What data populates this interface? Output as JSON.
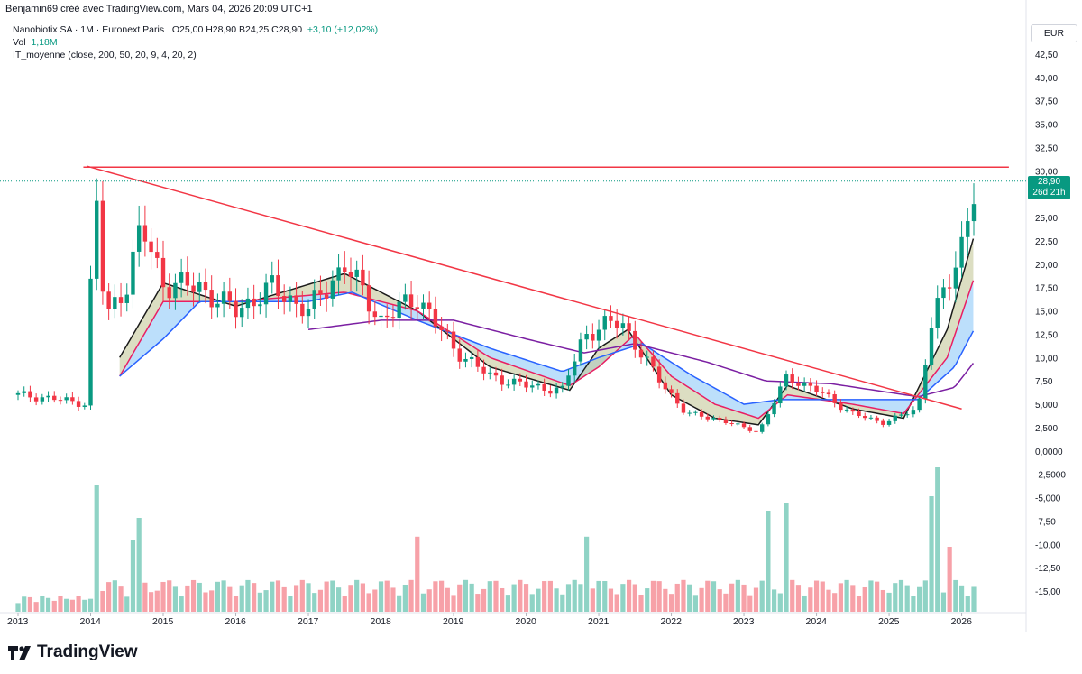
{
  "header": {
    "author_line": "Benjamin69 créé avec TradingView.com, Mars 04, 2026 20:09 UTC+1",
    "symbol_line": "Nanobiotix SA · 1M · Euronext Paris",
    "ohlc": "O25,00  H28,90  B24,25  C28,90",
    "change": "+3,10 (+12,02%)",
    "vol_label": "Vol",
    "vol_value": "1,18M",
    "indicator": "IT_moyenne (close, 200, 50, 20, 9, 4, 20, 2)"
  },
  "currency": "EUR",
  "price_tag": {
    "price": "28,90",
    "countdown": "26d 21h"
  },
  "brand": "TradingView",
  "colors": {
    "up": "#089981",
    "down": "#f23645",
    "trendline": "#f23645",
    "ma_fast": "#1b1b1b",
    "ma_pink": "#e91e63",
    "ma_blue": "#2962ff",
    "ma_purple": "#7b1fa2",
    "fill_blue": "#90caf9",
    "fill_olive": "#c5c89a",
    "vol_up": "#8fd3c5",
    "vol_down": "#f7a1a8"
  },
  "chart_data": {
    "type": "candlestick",
    "title": "Nanobiotix SA · 1M · Euronext Paris",
    "y_axis_labels": [
      "42,50",
      "40,00",
      "37,50",
      "35,00",
      "32,50",
      "30,00",
      "25,00",
      "22,50",
      "20,00",
      "17,50",
      "15,00",
      "12,50",
      "10,00",
      "7,50",
      "5,000",
      "2,500",
      "0,0000",
      "-2,5000",
      "-5,000",
      "-7,50",
      "-10,00",
      "-12,50",
      "-15,00"
    ],
    "y_axis_values": [
      42.5,
      40,
      37.5,
      35,
      32.5,
      30,
      25,
      22.5,
      20,
      17.5,
      15,
      12.5,
      10,
      7.5,
      5,
      2.5,
      0,
      -2.5,
      -5,
      -7.5,
      -10,
      -12.5,
      -15
    ],
    "ylim": [
      -17,
      43
    ],
    "x_axis_labels": [
      "2013",
      "2014",
      "2015",
      "2016",
      "2017",
      "2018",
      "2019",
      "2020",
      "2021",
      "2022",
      "2023",
      "2024",
      "2025",
      "2026"
    ],
    "x_axis_years": [
      2013,
      2014,
      2015,
      2016,
      2017,
      2018,
      2019,
      2020,
      2021,
      2022,
      2023,
      2024,
      2025,
      2026
    ],
    "xlim": [
      2013.0,
      2026.85
    ],
    "last_close": 28.9,
    "key_closes": [
      {
        "t": 2013.0,
        "v": 6.0
      },
      {
        "t": 2013.5,
        "v": 5.6
      },
      {
        "t": 2013.95,
        "v": 5.0
      },
      {
        "t": 2014.05,
        "v": 30.0
      },
      {
        "t": 2014.2,
        "v": 14.0
      },
      {
        "t": 2014.5,
        "v": 18.0
      },
      {
        "t": 2014.7,
        "v": 24.0
      },
      {
        "t": 2015.0,
        "v": 18.0
      },
      {
        "t": 2015.5,
        "v": 17.5
      },
      {
        "t": 2016.0,
        "v": 15.0
      },
      {
        "t": 2016.5,
        "v": 17.5
      },
      {
        "t": 2017.0,
        "v": 15.0
      },
      {
        "t": 2017.5,
        "v": 20.0
      },
      {
        "t": 2018.0,
        "v": 14.0
      },
      {
        "t": 2018.5,
        "v": 16.5
      },
      {
        "t": 2019.0,
        "v": 11.0
      },
      {
        "t": 2019.5,
        "v": 8.0
      },
      {
        "t": 2020.0,
        "v": 7.0
      },
      {
        "t": 2020.5,
        "v": 6.5
      },
      {
        "t": 2020.8,
        "v": 12.5
      },
      {
        "t": 2021.3,
        "v": 14.0
      },
      {
        "t": 2021.7,
        "v": 9.0
      },
      {
        "t": 2022.2,
        "v": 4.0
      },
      {
        "t": 2022.6,
        "v": 3.5
      },
      {
        "t": 2023.2,
        "v": 2.0
      },
      {
        "t": 2023.6,
        "v": 8.0
      },
      {
        "t": 2024.0,
        "v": 6.5
      },
      {
        "t": 2024.5,
        "v": 4.0
      },
      {
        "t": 2024.9,
        "v": 3.0
      },
      {
        "t": 2025.4,
        "v": 4.5
      },
      {
        "t": 2025.6,
        "v": 15.0
      },
      {
        "t": 2025.8,
        "v": 17.0
      },
      {
        "t": 2026.0,
        "v": 22.0
      },
      {
        "t": 2026.1,
        "v": 25.8
      },
      {
        "t": 2026.17,
        "v": 28.9
      }
    ],
    "moving_averages": [
      {
        "name": "ma_fast",
        "values": [
          {
            "t": 2014.4,
            "v": 10
          },
          {
            "t": 2015.0,
            "v": 18
          },
          {
            "t": 2016.0,
            "v": 15.5
          },
          {
            "t": 2017.5,
            "v": 19
          },
          {
            "t": 2018.5,
            "v": 15
          },
          {
            "t": 2019.5,
            "v": 9
          },
          {
            "t": 2020.6,
            "v": 6.5
          },
          {
            "t": 2021.0,
            "v": 11
          },
          {
            "t": 2021.4,
            "v": 13
          },
          {
            "t": 2022.0,
            "v": 6
          },
          {
            "t": 2022.6,
            "v": 3.5
          },
          {
            "t": 2023.2,
            "v": 2.8
          },
          {
            "t": 2023.6,
            "v": 7
          },
          {
            "t": 2024.5,
            "v": 4.5
          },
          {
            "t": 2025.2,
            "v": 3.5
          },
          {
            "t": 2025.8,
            "v": 13
          },
          {
            "t": 2026.17,
            "v": 23
          }
        ]
      },
      {
        "name": "ma_pink",
        "values": [
          {
            "t": 2014.4,
            "v": 8
          },
          {
            "t": 2015.0,
            "v": 16
          },
          {
            "t": 2016.0,
            "v": 16
          },
          {
            "t": 2017.5,
            "v": 17
          },
          {
            "t": 2018.5,
            "v": 15
          },
          {
            "t": 2019.5,
            "v": 10
          },
          {
            "t": 2020.6,
            "v": 7
          },
          {
            "t": 2021.0,
            "v": 9
          },
          {
            "t": 2021.5,
            "v": 12.5
          },
          {
            "t": 2022.0,
            "v": 8
          },
          {
            "t": 2022.6,
            "v": 5
          },
          {
            "t": 2023.2,
            "v": 3.5
          },
          {
            "t": 2023.6,
            "v": 6
          },
          {
            "t": 2024.5,
            "v": 5
          },
          {
            "t": 2025.2,
            "v": 4
          },
          {
            "t": 2025.8,
            "v": 10
          },
          {
            "t": 2026.17,
            "v": 18.5
          }
        ]
      },
      {
        "name": "ma_blue",
        "values": [
          {
            "t": 2014.4,
            "v": 8
          },
          {
            "t": 2015.0,
            "v": 12
          },
          {
            "t": 2015.5,
            "v": 16
          },
          {
            "t": 2016.0,
            "v": 16
          },
          {
            "t": 2017.0,
            "v": 16
          },
          {
            "t": 2017.6,
            "v": 17
          },
          {
            "t": 2018.5,
            "v": 14
          },
          {
            "t": 2019.5,
            "v": 11
          },
          {
            "t": 2020.5,
            "v": 8.5
          },
          {
            "t": 2021.0,
            "v": 10
          },
          {
            "t": 2021.6,
            "v": 11.5
          },
          {
            "t": 2022.3,
            "v": 8
          },
          {
            "t": 2023.0,
            "v": 5
          },
          {
            "t": 2023.5,
            "v": 5.5
          },
          {
            "t": 2024.5,
            "v": 5.5
          },
          {
            "t": 2025.4,
            "v": 5.5
          },
          {
            "t": 2025.9,
            "v": 9
          },
          {
            "t": 2026.17,
            "v": 13
          }
        ]
      },
      {
        "name": "ma_purple",
        "values": [
          {
            "t": 2017.0,
            "v": 13
          },
          {
            "t": 2018.0,
            "v": 14
          },
          {
            "t": 2019.0,
            "v": 14
          },
          {
            "t": 2020.0,
            "v": 12
          },
          {
            "t": 2020.8,
            "v": 10.5
          },
          {
            "t": 2021.5,
            "v": 11.5
          },
          {
            "t": 2022.5,
            "v": 9.5
          },
          {
            "t": 2023.3,
            "v": 7.5
          },
          {
            "t": 2024.2,
            "v": 7.2
          },
          {
            "t": 2025.4,
            "v": 5.8
          },
          {
            "t": 2025.9,
            "v": 6.8
          },
          {
            "t": 2026.17,
            "v": 9.5
          }
        ]
      }
    ],
    "trendlines": [
      {
        "name": "descending",
        "from": {
          "t": 2013.95,
          "v": 30.5
        },
        "to": {
          "t": 2026.0,
          "v": 4.5
        }
      },
      {
        "name": "resistance",
        "from": {
          "t": 2013.9,
          "v": 30.4
        },
        "to": {
          "t": 2026.65,
          "v": 30.4
        }
      }
    ],
    "volume_peaks": [
      {
        "t": 2014.05,
        "color": "up",
        "rel": 0.88
      },
      {
        "t": 2014.6,
        "color": "up",
        "rel": 0.5
      },
      {
        "t": 2014.7,
        "color": "down",
        "rel": 0.65
      },
      {
        "t": 2018.5,
        "color": "up",
        "rel": 0.52
      },
      {
        "t": 2020.8,
        "color": "up",
        "rel": 0.52
      },
      {
        "t": 2023.3,
        "color": "up",
        "rel": 0.7
      },
      {
        "t": 2023.55,
        "color": "up",
        "rel": 0.75
      },
      {
        "t": 2025.55,
        "color": "up",
        "rel": 0.8
      },
      {
        "t": 2025.7,
        "color": "up",
        "rel": 1.0
      },
      {
        "t": 2025.8,
        "color": "down",
        "rel": 0.45
      }
    ]
  }
}
